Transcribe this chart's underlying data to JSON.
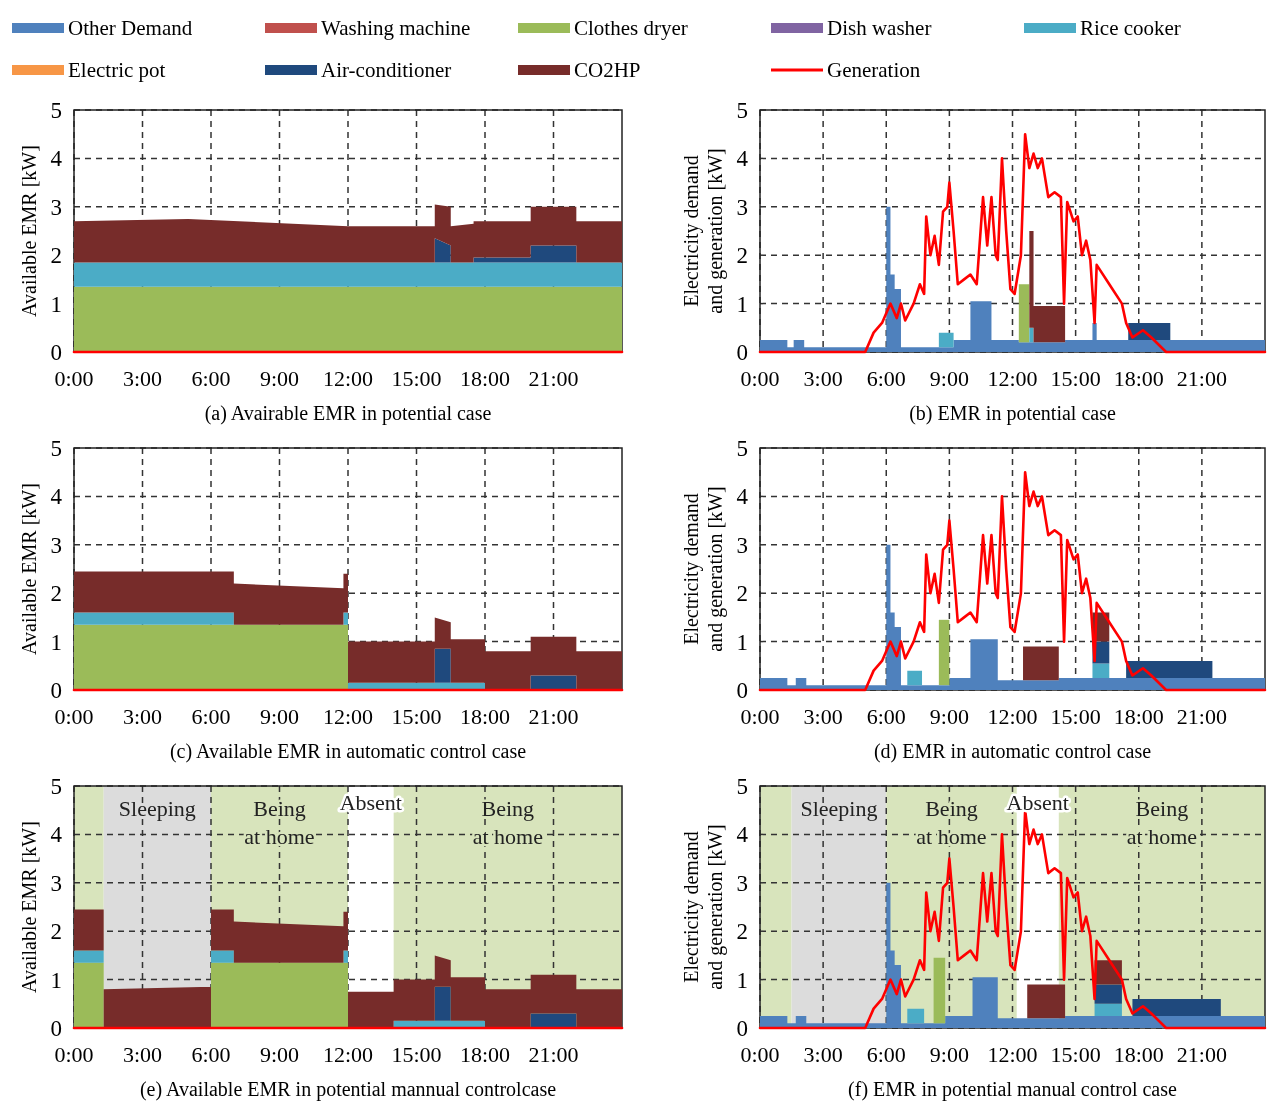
{
  "chart_data": [
    {
      "type": "area",
      "stacked": true,
      "title": "(a) Avairable EMR in potential case",
      "ylabel": "Available EMR [kW]",
      "legend": "top",
      "grid": true,
      "xlim": [
        0,
        24
      ],
      "ylim": [
        0,
        5
      ],
      "yticks": [
        0,
        1,
        2,
        3,
        4,
        5
      ],
      "xticks": [
        {
          "value": 0,
          "label": "0:00"
        },
        {
          "value": 3,
          "label": "3:00"
        },
        {
          "value": 6,
          "label": "6:00"
        },
        {
          "value": 9,
          "label": "9:00"
        },
        {
          "value": 12,
          "label": "12:00"
        },
        {
          "value": 15,
          "label": "15:00"
        },
        {
          "value": 18,
          "label": "18:00"
        },
        {
          "value": 21,
          "label": "21:00"
        }
      ],
      "x": [
        0,
        5,
        12,
        15.8,
        15.8,
        16.5,
        16.5,
        17.5,
        17.5,
        20,
        20,
        22,
        22,
        24
      ],
      "series": [
        {
          "name": "Other Demand",
          "color": "#4f81bd",
          "values": [
            null,
            null,
            null,
            null,
            null,
            null,
            null,
            null,
            null,
            null,
            null,
            null,
            null,
            null
          ]
        },
        {
          "name": "Washing machine",
          "color": "#c0504d",
          "values": [
            null,
            null,
            null,
            null,
            null,
            null,
            null,
            null,
            null,
            null,
            null,
            null,
            null,
            null
          ]
        },
        {
          "name": "Clothes dryer",
          "color": "#9bbb59",
          "values": [
            1.35,
            1.35,
            1.35,
            1.35,
            1.35,
            1.35,
            1.35,
            1.35,
            1.35,
            1.35,
            1.35,
            1.35,
            1.35,
            1.35
          ]
        },
        {
          "name": "Dish washer",
          "color": "#8064a2",
          "values": [
            null,
            null,
            null,
            null,
            null,
            null,
            null,
            null,
            null,
            null,
            null,
            null,
            null,
            null
          ]
        },
        {
          "name": "Rice cooker",
          "color": "#4bacc6",
          "values": [
            0.5,
            0.5,
            0.5,
            0.5,
            0.5,
            0.5,
            0.5,
            0.5,
            0.5,
            0.5,
            0.5,
            0.5,
            0.5,
            0.5
          ]
        },
        {
          "name": "Electric pot",
          "color": "#f79646",
          "values": [
            null,
            null,
            null,
            null,
            null,
            null,
            null,
            null,
            null,
            null,
            null,
            null,
            null,
            null
          ]
        },
        {
          "name": "Air-conditioner",
          "color": "#1f497d",
          "values": [
            null,
            null,
            null,
            null,
            0.5,
            0.35,
            null,
            null,
            0.1,
            0.1,
            0.35,
            0.35,
            null,
            null
          ]
        },
        {
          "name": "CO2HP",
          "color": "#772c2a",
          "values": [
            0.85,
            0.9,
            0.75,
            0.75,
            0.7,
            0.8,
            0.75,
            0.8,
            0.75,
            0.75,
            0.8,
            0.8,
            0.85,
            0.85
          ]
        },
        {
          "name": "Generation",
          "type": "line",
          "color": "#ff0000",
          "x": [
            0,
            24
          ],
          "values": [
            0,
            0
          ]
        }
      ]
    },
    {
      "type": "area",
      "stacked": true,
      "title": "(b) EMR in potential case",
      "ylabel": "Electricity demand and generation [kW]",
      "grid": true,
      "xlim": [
        0,
        24
      ],
      "ylim": [
        0,
        5
      ],
      "yticks": [
        0,
        1,
        2,
        3,
        4,
        5
      ],
      "xticks": [
        {
          "value": 0,
          "label": "0:00"
        },
        {
          "value": 3,
          "label": "3:00"
        },
        {
          "value": 6,
          "label": "6:00"
        },
        {
          "value": 9,
          "label": "9:00"
        },
        {
          "value": 12,
          "label": "12:00"
        },
        {
          "value": 15,
          "label": "15:00"
        },
        {
          "value": 18,
          "label": "18:00"
        },
        {
          "value": 21,
          "label": "21:00"
        }
      ],
      "x": [
        0,
        1.3,
        1.3,
        1.6,
        1.6,
        2.1,
        2.1,
        6.0,
        6.0,
        6.2,
        6.2,
        6.4,
        6.4,
        6.7,
        6.7,
        8.5,
        8.5,
        9.2,
        9.2,
        10,
        10,
        11,
        11,
        12.3,
        12.3,
        12.8,
        12.8,
        13,
        13,
        14.5,
        14.5,
        15.8,
        15.8,
        16,
        16,
        17.5,
        17.5,
        19.5,
        19.5,
        24
      ],
      "series": [
        {
          "color": "#4f81bd",
          "values": [
            0.25,
            0.25,
            0.1,
            0.1,
            0.25,
            0.25,
            0.1,
            0.1,
            3.0,
            3.0,
            1.6,
            1.6,
            1.3,
            1.3,
            0.1,
            0.1,
            0.1,
            0.1,
            0.25,
            0.25,
            1.05,
            1.05,
            0.25,
            0.25,
            0.2,
            0.2,
            0.2,
            0.2,
            0.2,
            0.2,
            0.25,
            0.25,
            0.6,
            0.6,
            0.25,
            0.25,
            0.25,
            0.25,
            0.25,
            0.25
          ]
        },
        {
          "color": "#9bbb59",
          "values": [
            null,
            null,
            null,
            null,
            null,
            null,
            null,
            null,
            null,
            null,
            null,
            null,
            null,
            null,
            null,
            null,
            null,
            null,
            null,
            null,
            null,
            null,
            null,
            null,
            1.2,
            1.2,
            null,
            null,
            null,
            null,
            null,
            null,
            null,
            null,
            null,
            null,
            null,
            null,
            null,
            null
          ]
        },
        {
          "color": "#4bacc6",
          "values": [
            null,
            null,
            null,
            null,
            null,
            null,
            null,
            null,
            null,
            null,
            null,
            null,
            null,
            null,
            null,
            null,
            0.3,
            0.3,
            null,
            null,
            null,
            null,
            null,
            null,
            null,
            null,
            0.3,
            0.3,
            null,
            null,
            null,
            null,
            null,
            null,
            null,
            null,
            null,
            null,
            null,
            null
          ]
        },
        {
          "color": "#1f497d",
          "values": [
            null,
            null,
            null,
            null,
            null,
            null,
            null,
            null,
            null,
            null,
            null,
            null,
            null,
            null,
            null,
            null,
            null,
            null,
            null,
            null,
            null,
            null,
            null,
            null,
            null,
            null,
            null,
            null,
            null,
            null,
            null,
            null,
            null,
            null,
            null,
            null,
            0.35,
            0.35,
            null,
            null
          ]
        },
        {
          "color": "#772c2a",
          "values": [
            null,
            null,
            null,
            null,
            null,
            null,
            null,
            null,
            null,
            null,
            null,
            null,
            null,
            null,
            null,
            null,
            null,
            null,
            null,
            null,
            null,
            null,
            null,
            null,
            null,
            null,
            2.0,
            2.0,
            0.75,
            0.75,
            null,
            null,
            null,
            null,
            null,
            null,
            null,
            null,
            null,
            null
          ]
        },
        {
          "type": "line",
          "color": "#ff0000",
          "x": [
            0,
            5.0,
            5.4,
            5.8,
            6.2,
            6.5,
            6.7,
            6.9,
            7.3,
            7.6,
            7.8,
            7.9,
            8.1,
            8.3,
            8.5,
            8.7,
            8.9,
            9.0,
            9.2,
            9.4,
            9.7,
            10.0,
            10.3,
            10.6,
            10.8,
            11.0,
            11.2,
            11.3,
            11.5,
            11.7,
            11.9,
            12.1,
            12.4,
            12.6,
            12.8,
            13.0,
            13.2,
            13.4,
            13.7,
            14.0,
            14.3,
            14.45,
            14.6,
            14.9,
            15.1,
            15.3,
            15.5,
            15.7,
            15.9,
            16.0,
            16.6,
            17.2,
            17.4,
            17.7,
            18.2,
            18.6,
            19.3,
            24
          ],
          "values": [
            0,
            0,
            0.4,
            0.6,
            1.0,
            0.7,
            1.0,
            0.65,
            1.0,
            1.4,
            1.2,
            2.8,
            2.0,
            2.4,
            1.8,
            2.9,
            3.0,
            3.5,
            2.5,
            1.4,
            1.5,
            1.6,
            1.4,
            3.2,
            2.2,
            3.2,
            2.0,
            1.9,
            4.0,
            2.5,
            1.3,
            1.2,
            2.0,
            4.5,
            3.8,
            4.1,
            3.8,
            4.0,
            3.2,
            3.3,
            3.2,
            1.0,
            3.1,
            2.7,
            2.8,
            2.0,
            2.3,
            1.9,
            0.6,
            1.8,
            1.4,
            1.0,
            0.6,
            0.3,
            0.45,
            0.3,
            0,
            0
          ]
        }
      ]
    },
    {
      "type": "area",
      "stacked": true,
      "title": "(c) Available EMR in automatic control case",
      "ylabel": "Available EMR [kW]",
      "grid": true,
      "xlim": [
        0,
        24
      ],
      "ylim": [
        0,
        5
      ],
      "yticks": [
        0,
        1,
        2,
        3,
        4,
        5
      ],
      "xticks": [
        {
          "value": 0,
          "label": "0:00"
        },
        {
          "value": 3,
          "label": "3:00"
        },
        {
          "value": 6,
          "label": "6:00"
        },
        {
          "value": 9,
          "label": "9:00"
        },
        {
          "value": 12,
          "label": "12:00"
        },
        {
          "value": 15,
          "label": "15:00"
        },
        {
          "value": 18,
          "label": "18:00"
        },
        {
          "value": 21,
          "label": "21:00"
        }
      ],
      "x": [
        0,
        7,
        7,
        11.8,
        11.8,
        12,
        12,
        15.8,
        15.8,
        16.5,
        16.5,
        18,
        18,
        20,
        20,
        22,
        22,
        24
      ],
      "series": [
        {
          "color": "#9bbb59",
          "values": [
            1.35,
            1.35,
            1.35,
            1.35,
            1.35,
            1.35,
            null,
            null,
            null,
            null,
            null,
            null,
            null,
            null,
            null,
            null,
            null,
            null
          ]
        },
        {
          "color": "#4bacc6",
          "values": [
            0.25,
            0.25,
            null,
            null,
            0.25,
            0.25,
            0.15,
            0.15,
            0.15,
            0.15,
            0.15,
            0.15,
            null,
            null,
            null,
            null,
            null,
            null
          ]
        },
        {
          "color": "#1f497d",
          "values": [
            null,
            null,
            null,
            null,
            null,
            null,
            null,
            null,
            0.7,
            0.7,
            null,
            null,
            null,
            null,
            0.3,
            0.3,
            null,
            null
          ]
        },
        {
          "color": "#772c2a",
          "values": [
            0.85,
            0.85,
            0.85,
            0.75,
            0.8,
            0.8,
            0.85,
            0.85,
            0.65,
            0.55,
            0.9,
            0.9,
            0.8,
            0.8,
            0.8,
            0.8,
            0.8,
            0.8
          ]
        },
        {
          "type": "line",
          "color": "#ff0000",
          "x": [
            0,
            24
          ],
          "values": [
            0,
            0
          ]
        }
      ]
    },
    {
      "type": "area",
      "stacked": true,
      "title": "(d) EMR in automatic control case",
      "ylabel": "Electricity demand and generation [kW]",
      "grid": true,
      "xlim": [
        0,
        24
      ],
      "ylim": [
        0,
        5
      ],
      "yticks": [
        0,
        1,
        2,
        3,
        4,
        5
      ],
      "xticks": [
        {
          "value": 0,
          "label": "0:00"
        },
        {
          "value": 3,
          "label": "3:00"
        },
        {
          "value": 6,
          "label": "6:00"
        },
        {
          "value": 9,
          "label": "9:00"
        },
        {
          "value": 12,
          "label": "12:00"
        },
        {
          "value": 15,
          "label": "15:00"
        },
        {
          "value": 18,
          "label": "18:00"
        },
        {
          "value": 21,
          "label": "21:00"
        }
      ],
      "x": [
        0,
        1.3,
        1.3,
        1.7,
        1.7,
        2.2,
        2.2,
        6.0,
        6.0,
        6.2,
        6.2,
        6.4,
        6.4,
        6.7,
        6.7,
        7.0,
        7.0,
        7.7,
        7.7,
        8.5,
        8.5,
        9.0,
        9.0,
        10.0,
        10.0,
        11.3,
        11.3,
        12.5,
        12.5,
        14.2,
        14.2,
        15.8,
        15.8,
        16.6,
        16.6,
        17.4,
        17.4,
        21.5,
        21.5,
        24
      ],
      "series": [
        {
          "color": "#4f81bd",
          "values": [
            0.25,
            0.25,
            0.1,
            0.1,
            0.25,
            0.25,
            0.1,
            0.1,
            3.0,
            3.0,
            1.6,
            1.6,
            1.3,
            1.3,
            0.1,
            0.1,
            0.1,
            0.1,
            0.1,
            0.1,
            0.1,
            0.1,
            0.25,
            0.25,
            1.05,
            1.05,
            0.2,
            0.2,
            0.2,
            0.2,
            0.25,
            0.25,
            0.25,
            0.25,
            0.25,
            0.25,
            0.25,
            0.25,
            0.25,
            0.25
          ]
        },
        {
          "color": "#9bbb59",
          "values": [
            null,
            null,
            null,
            null,
            null,
            null,
            null,
            null,
            null,
            null,
            null,
            null,
            null,
            null,
            null,
            null,
            null,
            null,
            null,
            null,
            1.35,
            1.35,
            null,
            null,
            null,
            null,
            null,
            null,
            null,
            null,
            null,
            null,
            null,
            null,
            null,
            null,
            null,
            null,
            null,
            null
          ]
        },
        {
          "color": "#4bacc6",
          "values": [
            null,
            null,
            null,
            null,
            null,
            null,
            null,
            null,
            null,
            null,
            null,
            null,
            null,
            null,
            null,
            null,
            0.3,
            0.3,
            null,
            null,
            null,
            null,
            null,
            null,
            null,
            null,
            null,
            null,
            null,
            null,
            null,
            null,
            0.3,
            0.3,
            null,
            null,
            null,
            null,
            null,
            null
          ]
        },
        {
          "color": "#1f497d",
          "values": [
            null,
            null,
            null,
            null,
            null,
            null,
            null,
            null,
            null,
            null,
            null,
            null,
            null,
            null,
            null,
            null,
            null,
            null,
            null,
            null,
            null,
            null,
            null,
            null,
            null,
            null,
            null,
            null,
            null,
            null,
            null,
            null,
            0.45,
            0.45,
            null,
            null,
            0.35,
            0.35,
            null,
            null
          ]
        },
        {
          "color": "#772c2a",
          "values": [
            null,
            null,
            null,
            null,
            null,
            null,
            null,
            null,
            null,
            null,
            null,
            null,
            null,
            null,
            null,
            null,
            null,
            null,
            null,
            null,
            null,
            null,
            null,
            null,
            null,
            null,
            null,
            null,
            0.7,
            0.7,
            null,
            null,
            0.6,
            0.6,
            null,
            null,
            null,
            null,
            null,
            null
          ]
        },
        {
          "type": "line",
          "color": "#ff0000",
          "x": [
            0,
            5.0,
            5.4,
            5.8,
            6.2,
            6.5,
            6.7,
            6.9,
            7.3,
            7.6,
            7.8,
            7.9,
            8.1,
            8.3,
            8.5,
            8.7,
            8.9,
            9.0,
            9.2,
            9.4,
            9.7,
            10.0,
            10.3,
            10.6,
            10.8,
            11.0,
            11.2,
            11.3,
            11.5,
            11.7,
            11.9,
            12.1,
            12.4,
            12.6,
            12.8,
            13.0,
            13.2,
            13.4,
            13.7,
            14.0,
            14.3,
            14.45,
            14.6,
            14.9,
            15.1,
            15.3,
            15.5,
            15.7,
            15.9,
            16.0,
            16.6,
            17.2,
            17.4,
            17.7,
            18.2,
            18.6,
            19.3,
            24
          ],
          "values": [
            0,
            0,
            0.4,
            0.6,
            1.0,
            0.7,
            1.0,
            0.65,
            1.0,
            1.4,
            1.2,
            2.8,
            2.0,
            2.4,
            1.8,
            2.9,
            3.0,
            3.5,
            2.5,
            1.4,
            1.5,
            1.6,
            1.4,
            3.2,
            2.2,
            3.2,
            2.0,
            1.9,
            4.0,
            2.5,
            1.3,
            1.2,
            2.0,
            4.5,
            3.8,
            4.1,
            3.8,
            4.0,
            3.2,
            3.3,
            3.2,
            1.0,
            3.1,
            2.7,
            2.8,
            2.0,
            2.3,
            1.9,
            0.6,
            1.8,
            1.4,
            1.0,
            0.6,
            0.3,
            0.45,
            0.3,
            0,
            0
          ]
        }
      ]
    },
    {
      "type": "area",
      "stacked": true,
      "title": "(e) Available EMR in potential  mannual controlcase",
      "ylabel": "Available EMR [kW]",
      "grid": true,
      "xlim": [
        0,
        24
      ],
      "ylim": [
        0,
        5
      ],
      "yticks": [
        0,
        1,
        2,
        3,
        4,
        5
      ],
      "xticks": [
        {
          "value": 0,
          "label": "0:00"
        },
        {
          "value": 3,
          "label": "3:00"
        },
        {
          "value": 6,
          "label": "6:00"
        },
        {
          "value": 9,
          "label": "9:00"
        },
        {
          "value": 12,
          "label": "12:00"
        },
        {
          "value": 15,
          "label": "15:00"
        },
        {
          "value": 18,
          "label": "18:00"
        },
        {
          "value": 21,
          "label": "21:00"
        }
      ],
      "bands": [
        {
          "axis": "x",
          "from": 0,
          "to": 1.3,
          "color": "#d8e4bc"
        },
        {
          "axis": "x",
          "from": 1.3,
          "to": 6,
          "label": "Sleeping",
          "color": "#dcdcdc"
        },
        {
          "axis": "x",
          "from": 6,
          "to": 12,
          "label": "Being at home",
          "color": "#d8e4bc"
        },
        {
          "axis": "x",
          "from": 14,
          "to": 24,
          "label": "Being at home",
          "color": "#d8e4bc"
        }
      ],
      "annotations": [
        "Absent"
      ],
      "x": [
        0,
        1.3,
        1.3,
        6,
        6,
        7,
        7,
        11.8,
        11.8,
        12,
        12,
        14,
        14,
        15.8,
        15.8,
        16.5,
        16.5,
        18,
        18,
        20,
        20,
        22,
        22,
        24
      ],
      "series": [
        {
          "color": "#9bbb59",
          "values": [
            1.35,
            1.35,
            null,
            null,
            1.35,
            1.35,
            1.35,
            1.35,
            1.35,
            1.35,
            null,
            null,
            null,
            null,
            null,
            null,
            null,
            null,
            null,
            null,
            null,
            null,
            null,
            null
          ]
        },
        {
          "color": "#4bacc6",
          "values": [
            0.25,
            0.25,
            null,
            null,
            0.25,
            0.25,
            null,
            null,
            0.25,
            0.25,
            null,
            null,
            0.15,
            0.15,
            0.15,
            0.15,
            0.15,
            0.15,
            null,
            null,
            null,
            null,
            null,
            null
          ]
        },
        {
          "color": "#1f497d",
          "values": [
            null,
            null,
            null,
            null,
            null,
            null,
            null,
            null,
            null,
            null,
            null,
            null,
            null,
            null,
            0.7,
            0.7,
            null,
            null,
            null,
            null,
            0.3,
            0.3,
            null,
            null
          ]
        },
        {
          "color": "#772c2a",
          "values": [
            0.85,
            0.85,
            0.8,
            0.85,
            0.85,
            0.85,
            0.85,
            0.75,
            0.8,
            0.8,
            0.75,
            0.75,
            0.85,
            0.85,
            0.65,
            0.55,
            0.9,
            0.9,
            0.8,
            0.8,
            0.8,
            0.8,
            0.8,
            0.8
          ]
        },
        {
          "type": "line",
          "color": "#ff0000",
          "x": [
            0,
            24
          ],
          "values": [
            0,
            0
          ]
        }
      ]
    },
    {
      "type": "area",
      "stacked": true,
      "title": "(f) EMR in potential manual control case",
      "ylabel": "Electricity demand and generation [kW]",
      "grid": true,
      "xlim": [
        0,
        24
      ],
      "ylim": [
        0,
        5
      ],
      "yticks": [
        0,
        1,
        2,
        3,
        4,
        5
      ],
      "xticks": [
        {
          "value": 0,
          "label": "0:00"
        },
        {
          "value": 3,
          "label": "3:00"
        },
        {
          "value": 6,
          "label": "6:00"
        },
        {
          "value": 9,
          "label": "9:00"
        },
        {
          "value": 12,
          "label": "12:00"
        },
        {
          "value": 15,
          "label": "15:00"
        },
        {
          "value": 18,
          "label": "18:00"
        },
        {
          "value": 21,
          "label": "21:00"
        }
      ],
      "bands": [
        {
          "axis": "x",
          "from": 0,
          "to": 1.5,
          "color": "#d8e4bc"
        },
        {
          "axis": "x",
          "from": 1.5,
          "to": 6,
          "label": "Sleeping",
          "color": "#dcdcdc"
        },
        {
          "axis": "x",
          "from": 6,
          "to": 12.2,
          "label": "Being at home",
          "color": "#d8e4bc"
        },
        {
          "axis": "x",
          "from": 14.2,
          "to": 24,
          "label": "Being at home",
          "color": "#d8e4bc"
        }
      ],
      "annotations": [
        "Absent"
      ],
      "x": [
        0,
        1.3,
        1.3,
        1.7,
        1.7,
        2.2,
        2.2,
        6.0,
        6.0,
        6.2,
        6.2,
        6.4,
        6.4,
        6.7,
        6.7,
        7.0,
        7.0,
        7.8,
        7.8,
        8.25,
        8.25,
        8.8,
        8.8,
        10.1,
        10.1,
        11.3,
        11.3,
        12.7,
        12.7,
        14.5,
        14.5,
        15.9,
        15.9,
        17.2,
        17.2,
        17.7,
        17.7,
        21.9,
        21.9,
        24
      ],
      "series": [
        {
          "color": "#4f81bd",
          "values": [
            0.25,
            0.25,
            0.1,
            0.1,
            0.25,
            0.25,
            0.1,
            0.1,
            3.0,
            3.0,
            1.6,
            1.6,
            1.3,
            1.3,
            0.1,
            0.1,
            0.1,
            0.1,
            0.1,
            0.1,
            0.1,
            0.1,
            0.25,
            0.25,
            1.05,
            1.05,
            0.2,
            0.2,
            0.2,
            0.2,
            0.25,
            0.25,
            0.25,
            0.25,
            0.25,
            0.25,
            0.25,
            0.25,
            0.25,
            0.25
          ]
        },
        {
          "color": "#9bbb59",
          "values": [
            null,
            null,
            null,
            null,
            null,
            null,
            null,
            null,
            null,
            null,
            null,
            null,
            null,
            null,
            null,
            null,
            null,
            null,
            null,
            null,
            1.35,
            1.35,
            null,
            null,
            null,
            null,
            null,
            null,
            null,
            null,
            null,
            null,
            null,
            null,
            null,
            null,
            null,
            null,
            null,
            null
          ]
        },
        {
          "color": "#4bacc6",
          "values": [
            null,
            null,
            null,
            null,
            null,
            null,
            null,
            null,
            null,
            null,
            null,
            null,
            null,
            null,
            null,
            null,
            0.3,
            0.3,
            null,
            null,
            null,
            null,
            null,
            null,
            null,
            null,
            null,
            null,
            null,
            null,
            null,
            null,
            0.25,
            0.25,
            null,
            null,
            null,
            null,
            null,
            null
          ]
        },
        {
          "color": "#1f497d",
          "values": [
            null,
            null,
            null,
            null,
            null,
            null,
            null,
            null,
            null,
            null,
            null,
            null,
            null,
            null,
            null,
            null,
            null,
            null,
            null,
            null,
            null,
            null,
            null,
            null,
            null,
            null,
            null,
            null,
            null,
            null,
            null,
            null,
            0.4,
            0.4,
            null,
            null,
            0.35,
            0.35,
            null,
            null
          ]
        },
        {
          "color": "#772c2a",
          "values": [
            null,
            null,
            null,
            null,
            null,
            null,
            null,
            null,
            null,
            null,
            null,
            null,
            null,
            null,
            null,
            null,
            null,
            null,
            null,
            null,
            null,
            null,
            null,
            null,
            null,
            null,
            null,
            null,
            0.7,
            0.7,
            null,
            null,
            0.5,
            0.5,
            null,
            null,
            null,
            null,
            null,
            null
          ]
        },
        {
          "type": "line",
          "color": "#ff0000",
          "x": [
            0,
            5.0,
            5.4,
            5.8,
            6.2,
            6.5,
            6.7,
            6.9,
            7.3,
            7.6,
            7.8,
            7.9,
            8.1,
            8.3,
            8.5,
            8.7,
            8.9,
            9.0,
            9.2,
            9.4,
            9.7,
            10.0,
            10.3,
            10.6,
            10.8,
            11.0,
            11.2,
            11.3,
            11.5,
            11.7,
            11.9,
            12.1,
            12.4,
            12.6,
            12.8,
            13.0,
            13.2,
            13.4,
            13.7,
            14.0,
            14.3,
            14.45,
            14.6,
            14.9,
            15.1,
            15.3,
            15.5,
            15.7,
            15.9,
            16.0,
            16.6,
            17.2,
            17.4,
            17.7,
            18.2,
            18.6,
            19.3,
            24
          ],
          "values": [
            0,
            0,
            0.4,
            0.6,
            1.0,
            0.7,
            1.0,
            0.65,
            1.0,
            1.4,
            1.2,
            2.8,
            2.0,
            2.4,
            1.8,
            2.9,
            3.0,
            3.5,
            2.5,
            1.4,
            1.5,
            1.6,
            1.4,
            3.2,
            2.2,
            3.2,
            2.0,
            1.9,
            4.0,
            2.5,
            1.3,
            1.2,
            2.0,
            4.5,
            3.8,
            4.1,
            3.8,
            4.0,
            3.2,
            3.3,
            3.2,
            1.0,
            3.1,
            2.7,
            2.8,
            2.0,
            2.3,
            1.9,
            0.6,
            1.8,
            1.4,
            1.0,
            0.6,
            0.3,
            0.45,
            0.3,
            0,
            0
          ]
        }
      ]
    }
  ]
}
